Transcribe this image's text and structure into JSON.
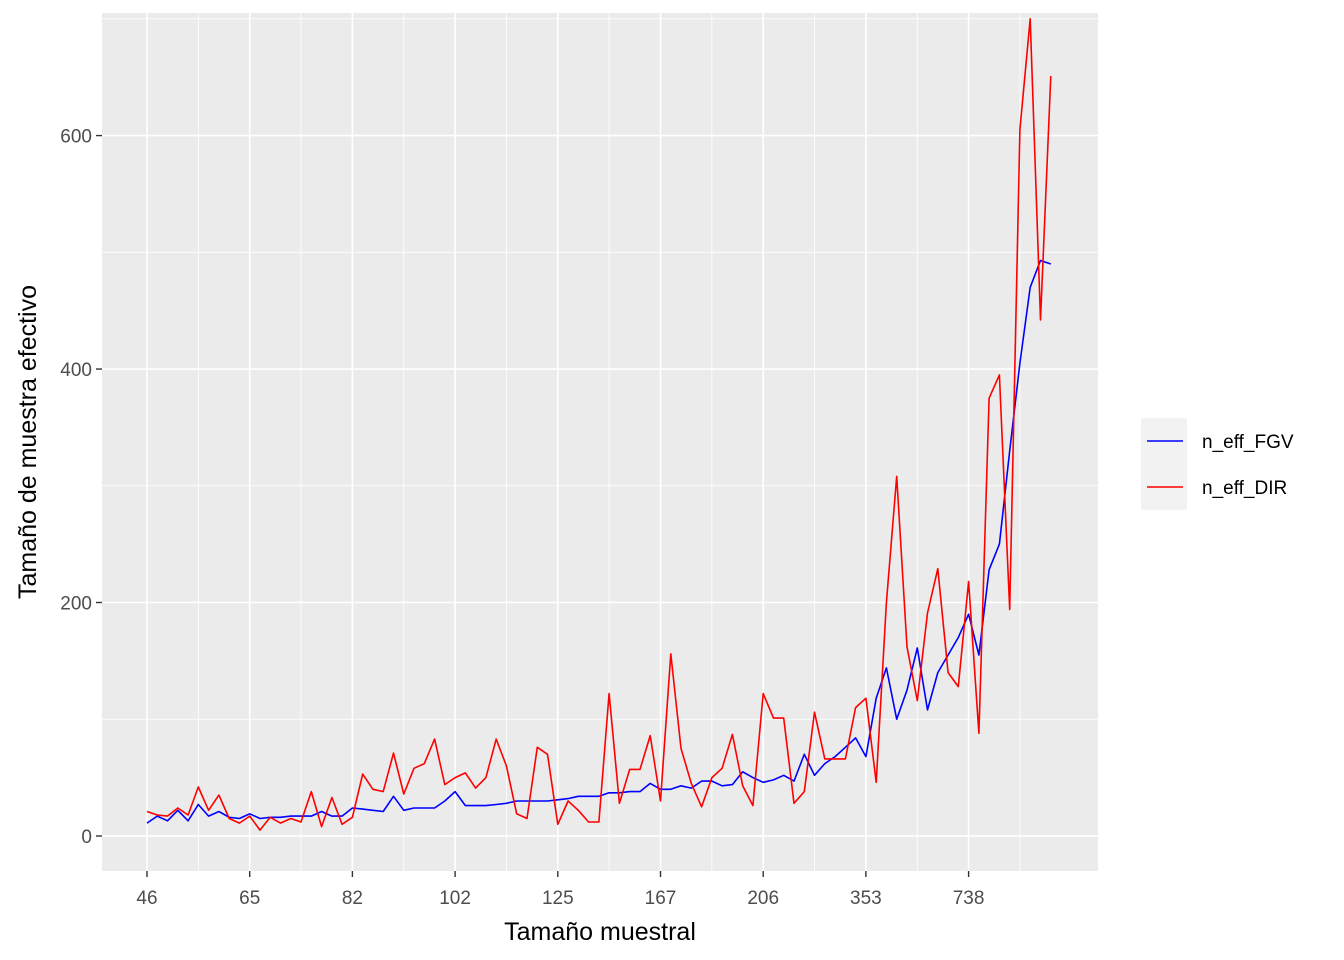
{
  "chart_data": {
    "type": "line",
    "xlabel": "Tamaño muestral",
    "ylabel": "Tamaño de muestra efectivo",
    "x_tick_labels": [
      "46",
      "65",
      "82",
      "102",
      "125",
      "167",
      "206",
      "353",
      "738"
    ],
    "y_ticks": [
      0,
      200,
      400,
      600
    ],
    "ylim": [
      -30,
      705
    ],
    "grid": true,
    "legend_position": "right",
    "x_index": [
      0,
      1,
      2,
      3,
      4,
      5,
      6,
      7,
      8,
      9,
      10,
      11,
      12,
      13,
      14,
      15,
      16,
      17,
      18,
      19,
      20,
      21,
      22,
      23,
      24,
      25,
      26,
      27,
      28,
      29,
      30,
      31,
      32,
      33,
      34,
      35,
      36,
      37,
      38,
      39,
      40,
      41,
      42,
      43,
      44,
      45,
      46,
      47,
      48,
      49,
      50,
      51,
      52,
      53,
      54,
      55,
      56,
      57,
      58,
      59,
      60,
      61,
      62,
      63,
      64,
      65,
      66,
      67,
      68,
      69,
      70,
      71,
      72,
      73,
      74,
      75,
      76,
      77,
      78,
      79,
      80,
      81,
      82,
      83,
      84,
      85,
      86,
      87,
      88,
      89
    ],
    "series": [
      {
        "name": "n_eff_FGV",
        "color": "#0000ff",
        "values": [
          11,
          17,
          13,
          22,
          13,
          27,
          17,
          21,
          16,
          15,
          19,
          15,
          16,
          16,
          17,
          17,
          17,
          21,
          17,
          17,
          24,
          23,
          22,
          21,
          34,
          22,
          24,
          24,
          24,
          30,
          38,
          26,
          26,
          26,
          27,
          28,
          30,
          30,
          30,
          30,
          31,
          32,
          34,
          34,
          34,
          37,
          37,
          38,
          38,
          45,
          40,
          40,
          43,
          41,
          47,
          47,
          43,
          44,
          55,
          50,
          46,
          48,
          52,
          47,
          70,
          52,
          62,
          68,
          76,
          84,
          68,
          118,
          144,
          100,
          125,
          161,
          108,
          140,
          155,
          170,
          190,
          155,
          228,
          250,
          330,
          405,
          470,
          493,
          490,
          null
        ]
      },
      {
        "name": "n_eff_DIR",
        "color": "#ff0000",
        "values": [
          21,
          18,
          17,
          24,
          18,
          42,
          22,
          35,
          15,
          11,
          17,
          5,
          16,
          11,
          15,
          12,
          38,
          8,
          33,
          10,
          16,
          53,
          40,
          38,
          71,
          36,
          58,
          62,
          83,
          44,
          50,
          54,
          41,
          50,
          83,
          60,
          19,
          15,
          76,
          70,
          10,
          30,
          22,
          12,
          12,
          122,
          28,
          57,
          57,
          86,
          30,
          156,
          75,
          45,
          25,
          50,
          58,
          87,
          43,
          26,
          122,
          101,
          101,
          28,
          38,
          106,
          66,
          66,
          66,
          110,
          118,
          46,
          200,
          308,
          162,
          116,
          191,
          229,
          140,
          128,
          218,
          88,
          375,
          395,
          194,
          605,
          700,
          442,
          651,
          null
        ]
      }
    ]
  },
  "legend": {
    "items": [
      {
        "label": "n_eff_FGV",
        "color": "#0000ff"
      },
      {
        "label": "n_eff_DIR",
        "color": "#ff0000"
      }
    ]
  }
}
